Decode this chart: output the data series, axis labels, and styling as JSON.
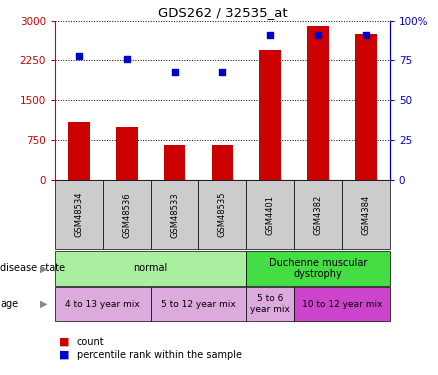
{
  "title": "GDS262 / 32535_at",
  "samples": [
    "GSM48534",
    "GSM48536",
    "GSM48533",
    "GSM48535",
    "GSM4401",
    "GSM4382",
    "GSM4384"
  ],
  "counts": [
    1100,
    1000,
    650,
    660,
    2450,
    2900,
    2750
  ],
  "percentiles": [
    78,
    76,
    68,
    68,
    91,
    91,
    91
  ],
  "ylim_left": [
    0,
    3000
  ],
  "ylim_right": [
    0,
    100
  ],
  "yticks_left": [
    0,
    750,
    1500,
    2250,
    3000
  ],
  "yticks_right": [
    0,
    25,
    50,
    75,
    100
  ],
  "ytick_labels_left": [
    "0",
    "750",
    "1500",
    "2250",
    "3000"
  ],
  "ytick_labels_right": [
    "0",
    "25",
    "50",
    "75",
    "100%"
  ],
  "bar_color": "#cc0000",
  "dot_color": "#0000cc",
  "disease_state_normal_color": "#aaeea a",
  "disease_state_dmd_color": "#44dd44",
  "age_color_light": "#ddaadd",
  "age_color_dark": "#cc44cc",
  "sample_bg_color": "#cccccc",
  "disease_states": [
    {
      "label": "normal",
      "start": 0,
      "end": 3,
      "color": "#aaeea0"
    },
    {
      "label": "Duchenne muscular\ndystrophy",
      "start": 4,
      "end": 6,
      "color": "#44dd44"
    }
  ],
  "age_groups": [
    {
      "label": "4 to 13 year mix",
      "start": 0,
      "end": 1,
      "color": "#ddaadd"
    },
    {
      "label": "5 to 12 year mix",
      "start": 2,
      "end": 3,
      "color": "#ddaadd"
    },
    {
      "label": "5 to 6\nyear mix",
      "start": 4,
      "end": 4,
      "color": "#ddaadd"
    },
    {
      "label": "10 to 12 year mix",
      "start": 5,
      "end": 6,
      "color": "#cc44cc"
    }
  ]
}
